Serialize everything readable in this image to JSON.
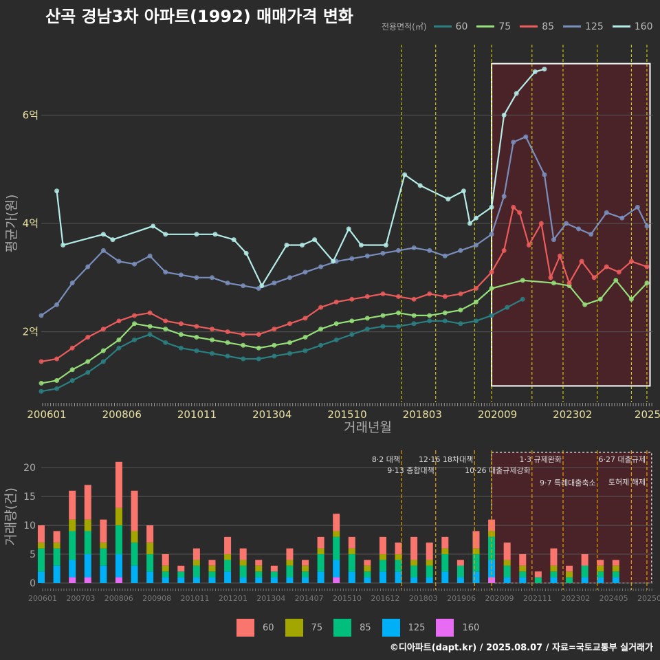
{
  "title": "산곡 경남3차 아파트(1992) 매매가격 변화",
  "legend_title": "전용면적(㎡)",
  "source": "©디아파트(dapt.kr) / 2025.08.07 / 자료=국토교통부 실거래가",
  "colors": {
    "s60": "#2a8082",
    "s75": "#96e07a",
    "s85": "#ee5c5c",
    "s125": "#7a8fbd",
    "s160": "#b4ece8",
    "v60": "#f8766d",
    "v75": "#a3a500",
    "v85": "#00bf7d",
    "v125": "#00b0f6",
    "v160": "#e76bf3",
    "policy": "#e6e600",
    "policy_vol": "#e6a000",
    "highlight": "#4a2328"
  },
  "chart_data": [
    {
      "type": "line",
      "title": "산곡 경남3차 아파트(1992) 매매가격 변화",
      "xlabel": "거래년월",
      "ylabel": "평균가(원)",
      "ylim": [
        0.7,
        7.3
      ],
      "y_ticks": [
        {
          "v": 2,
          "label": "2억"
        },
        {
          "v": 4,
          "label": "4억"
        },
        {
          "v": 6,
          "label": "6억"
        }
      ],
      "x_tick_labels": [
        "200601",
        "200806",
        "201011",
        "201304",
        "201510",
        "201803",
        "202009",
        "202302",
        "2025"
      ],
      "policy_lines": [
        "2017.6",
        "2018.7",
        "2019.95",
        "2020.5",
        "2021.8",
        "2022.8",
        "2023.9",
        "2025.0",
        "2025.5"
      ],
      "highlight_region": [
        2020.5,
        2025.6
      ],
      "series": [
        {
          "name": "60",
          "x": [
            2006.0,
            2006.5,
            2007.0,
            2007.5,
            2008.0,
            2008.5,
            2009.0,
            2009.5,
            2010.0,
            2010.5,
            2011.0,
            2011.5,
            2012.0,
            2012.5,
            2013.0,
            2013.5,
            2014.0,
            2014.5,
            2015.0,
            2015.5,
            2016.0,
            2016.5,
            2017.0,
            2017.5,
            2018.0,
            2018.5,
            2019.0,
            2019.5,
            2020.0,
            2020.5,
            2021.0,
            2021.5
          ],
          "y": [
            0.9,
            0.95,
            1.1,
            1.25,
            1.45,
            1.7,
            1.85,
            1.95,
            1.8,
            1.7,
            1.65,
            1.6,
            1.55,
            1.5,
            1.5,
            1.55,
            1.6,
            1.65,
            1.75,
            1.85,
            1.95,
            2.05,
            2.1,
            2.1,
            2.15,
            2.2,
            2.2,
            2.15,
            2.2,
            2.3,
            2.45,
            2.6
          ]
        },
        {
          "name": "75",
          "x": [
            2006.0,
            2006.5,
            2007.0,
            2007.5,
            2008.0,
            2008.5,
            2009.0,
            2009.5,
            2010.0,
            2010.5,
            2011.0,
            2011.5,
            2012.0,
            2012.5,
            2013.0,
            2013.5,
            2014.0,
            2014.5,
            2015.0,
            2015.5,
            2016.0,
            2016.5,
            2017.0,
            2017.5,
            2018.0,
            2018.5,
            2019.0,
            2019.5,
            2020.0,
            2020.5,
            2021.5,
            2022.5,
            2023.0,
            2023.5,
            2024.0,
            2024.5,
            2025.0,
            2025.5
          ],
          "y": [
            1.05,
            1.1,
            1.3,
            1.45,
            1.65,
            1.85,
            2.15,
            2.1,
            2.05,
            1.95,
            1.9,
            1.85,
            1.8,
            1.75,
            1.7,
            1.75,
            1.8,
            1.9,
            2.05,
            2.15,
            2.2,
            2.25,
            2.3,
            2.35,
            2.3,
            2.3,
            2.35,
            2.4,
            2.55,
            2.8,
            2.95,
            2.9,
            2.85,
            2.5,
            2.6,
            2.95,
            2.6,
            2.9
          ]
        },
        {
          "name": "85",
          "x": [
            2006.0,
            2006.5,
            2007.0,
            2007.5,
            2008.0,
            2008.5,
            2009.0,
            2009.5,
            2010.0,
            2010.5,
            2011.0,
            2011.5,
            2012.0,
            2012.5,
            2013.0,
            2013.5,
            2014.0,
            2014.5,
            2015.0,
            2015.5,
            2016.0,
            2016.5,
            2017.0,
            2017.5,
            2018.0,
            2018.5,
            2019.0,
            2019.5,
            2020.0,
            2020.5,
            2020.9,
            2021.2,
            2021.4,
            2021.7,
            2022.1,
            2022.4,
            2022.7,
            2023.0,
            2023.4,
            2023.8,
            2024.2,
            2024.6,
            2025.0,
            2025.5
          ],
          "y": [
            1.45,
            1.5,
            1.7,
            1.9,
            2.05,
            2.2,
            2.3,
            2.35,
            2.2,
            2.15,
            2.1,
            2.05,
            2.0,
            1.95,
            1.95,
            2.05,
            2.15,
            2.25,
            2.45,
            2.55,
            2.6,
            2.65,
            2.7,
            2.65,
            2.6,
            2.7,
            2.65,
            2.7,
            2.8,
            3.1,
            3.5,
            4.3,
            4.2,
            3.6,
            4.0,
            3.0,
            3.4,
            2.9,
            3.3,
            3.0,
            3.2,
            3.1,
            3.3,
            3.2
          ]
        },
        {
          "name": "125",
          "x": [
            2006.0,
            2006.5,
            2007.0,
            2007.5,
            2008.0,
            2008.5,
            2009.0,
            2009.5,
            2010.0,
            2010.5,
            2011.0,
            2011.5,
            2012.0,
            2012.5,
            2013.0,
            2013.5,
            2014.0,
            2014.5,
            2015.0,
            2015.5,
            2016.0,
            2016.5,
            2017.0,
            2017.5,
            2018.0,
            2018.5,
            2019.0,
            2019.5,
            2020.0,
            2020.5,
            2020.9,
            2021.2,
            2021.6,
            2022.2,
            2022.5,
            2022.9,
            2023.3,
            2023.7,
            2024.2,
            2024.7,
            2025.2,
            2025.5
          ],
          "y": [
            2.3,
            2.5,
            2.9,
            3.2,
            3.5,
            3.3,
            3.25,
            3.4,
            3.1,
            3.05,
            3.0,
            3.0,
            2.9,
            2.85,
            2.8,
            2.9,
            3.0,
            3.1,
            3.2,
            3.3,
            3.35,
            3.4,
            3.45,
            3.5,
            3.55,
            3.5,
            3.4,
            3.5,
            3.6,
            3.8,
            4.5,
            5.5,
            5.6,
            4.9,
            3.7,
            4.0,
            3.9,
            3.8,
            4.2,
            4.1,
            4.3,
            3.95
          ]
        },
        {
          "name": "160",
          "x": [
            2006.5,
            2006.7,
            2008.0,
            2008.3,
            2009.6,
            2010.0,
            2011.0,
            2011.6,
            2012.2,
            2012.6,
            2013.1,
            2013.9,
            2014.4,
            2014.8,
            2015.4,
            2015.9,
            2016.3,
            2017.1,
            2017.7,
            2018.2,
            2019.1,
            2019.6,
            2019.8,
            2020.0,
            2020.5,
            2020.9,
            2021.3,
            2021.9,
            2022.2
          ],
          "y": [
            4.6,
            3.6,
            3.8,
            3.7,
            3.95,
            3.8,
            3.8,
            3.8,
            3.7,
            3.45,
            2.85,
            3.6,
            3.6,
            3.7,
            3.3,
            3.9,
            3.6,
            3.6,
            4.9,
            4.7,
            4.45,
            4.6,
            4.0,
            4.1,
            4.3,
            6.0,
            6.4,
            6.8,
            6.85
          ]
        }
      ]
    },
    {
      "type": "bar",
      "stacked": true,
      "ylabel": "거래량(건)",
      "ylim": [
        0,
        23
      ],
      "y_ticks": [
        0,
        5,
        10,
        15,
        20
      ],
      "x_tick_labels": [
        "200601",
        "200703",
        "200806",
        "200908",
        "201011",
        "201201",
        "201304",
        "201407",
        "201510",
        "201612",
        "201803",
        "201906",
        "202009",
        "202111",
        "202302",
        "202405",
        "202506"
      ],
      "policy_labels": [
        {
          "x": "2017.6",
          "text": "8·2 대책"
        },
        {
          "x": "2018.7",
          "text": "9·13 종합대책"
        },
        {
          "x": "2019.95",
          "text": "12·16 18차대책"
        },
        {
          "x": "2021.8",
          "text": "10·26 대출규제강화"
        },
        {
          "x": "2022.8",
          "text": "1·3 규제완화"
        },
        {
          "x": "2023.9",
          "text": "9·7 특례대출축소"
        },
        {
          "x": "2025.5",
          "text": "6·27 대출규제"
        },
        {
          "x": "2025.5",
          "text": "토허제 해제"
        }
      ],
      "series": [
        {
          "name": "60",
          "values": [
            3,
            2,
            5,
            6,
            4,
            8,
            7,
            3,
            2,
            1,
            2,
            1,
            3,
            2,
            1,
            1,
            2,
            1,
            2,
            3,
            2,
            1,
            3,
            2,
            4,
            3,
            2,
            1,
            3,
            2,
            3,
            2,
            1,
            3,
            1,
            2,
            1,
            1
          ]
        },
        {
          "name": "75",
          "values": [
            1,
            1,
            2,
            2,
            1,
            3,
            2,
            2,
            1,
            0,
            1,
            1,
            1,
            1,
            1,
            0,
            1,
            1,
            1,
            1,
            1,
            1,
            1,
            1,
            1,
            1,
            1,
            0,
            1,
            1,
            1,
            1,
            0,
            1,
            1,
            0,
            1,
            1
          ]
        },
        {
          "name": "85",
          "values": [
            4,
            3,
            5,
            4,
            3,
            5,
            4,
            3,
            1,
            1,
            2,
            1,
            2,
            2,
            1,
            1,
            2,
            1,
            3,
            4,
            3,
            1,
            2,
            2,
            2,
            2,
            3,
            2,
            3,
            4,
            2,
            1,
            1,
            1,
            1,
            2,
            1,
            1
          ]
        },
        {
          "name": "125",
          "values": [
            2,
            3,
            3,
            4,
            3,
            4,
            3,
            2,
            1,
            1,
            1,
            1,
            2,
            1,
            1,
            1,
            1,
            1,
            2,
            3,
            2,
            1,
            2,
            2,
            1,
            1,
            2,
            1,
            2,
            3,
            1,
            1,
            0,
            1,
            0,
            1,
            1,
            1
          ]
        },
        {
          "name": "160",
          "values": [
            0,
            0,
            1,
            1,
            0,
            1,
            0,
            0,
            0,
            0,
            0,
            0,
            0,
            0,
            0,
            0,
            0,
            0,
            0,
            1,
            0,
            0,
            0,
            0,
            0,
            0,
            0,
            0,
            0,
            1,
            0,
            0,
            0,
            0,
            0,
            0,
            0,
            0
          ]
        }
      ],
      "categories": [
        "2006.0",
        "2006.5",
        "2007.0",
        "2007.5",
        "2008.0",
        "2008.5",
        "2009.0",
        "2009.5",
        "2010.0",
        "2010.5",
        "2011.0",
        "2011.5",
        "2012.0",
        "2012.5",
        "2013.0",
        "2013.5",
        "2014.0",
        "2014.5",
        "2015.0",
        "2015.5",
        "2016.0",
        "2016.5",
        "2017.0",
        "2017.5",
        "2018.0",
        "2018.5",
        "2019.0",
        "2019.5",
        "2020.0",
        "2020.5",
        "2021.0",
        "2021.5",
        "2022.0",
        "2022.5",
        "2023.0",
        "2023.5",
        "2024.0",
        "2024.5"
      ]
    }
  ]
}
